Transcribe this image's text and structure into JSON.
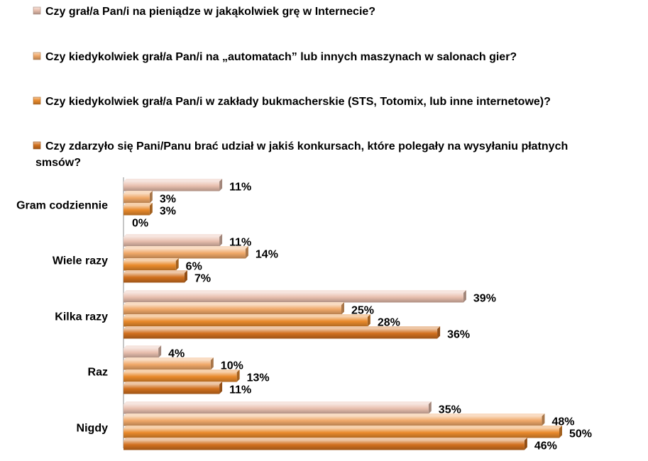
{
  "chart_data": {
    "type": "bar",
    "orientation": "horizontal",
    "categories": [
      "Gram codziennie",
      "Wiele razy",
      "Kilka razy",
      "Raz",
      "Nigdy"
    ],
    "series": [
      {
        "name": "Czy grał/a Pan/i na pieniądze w jakąkolwiek grę w Internecie?",
        "values": [
          11,
          11,
          39,
          4,
          35
        ],
        "color": "#e8bfae"
      },
      {
        "name": "Czy kiedykolwiek grał/a Pan/i  na „automatach” lub innych maszynach w salonach gier?",
        "values": [
          3,
          14,
          25,
          10,
          48
        ],
        "color": "#f0a868"
      },
      {
        "name": "Czy kiedykolwiek grał/a Pan/i w zakłady bukmacherskie  (STS, Totomix, lub inne internetowe)?",
        "values": [
          3,
          6,
          28,
          13,
          50
        ],
        "color": "#e98a2c"
      },
      {
        "name": "Czy zdarzyło się Pani/Panu brać udział w jakiś konkursach, które polegały na wysyłaniu płatnych smsów?",
        "values": [
          0,
          7,
          36,
          11,
          46
        ],
        "color": "#d1701e"
      }
    ],
    "value_suffix": "%",
    "legend_position": "top",
    "grid": false
  }
}
